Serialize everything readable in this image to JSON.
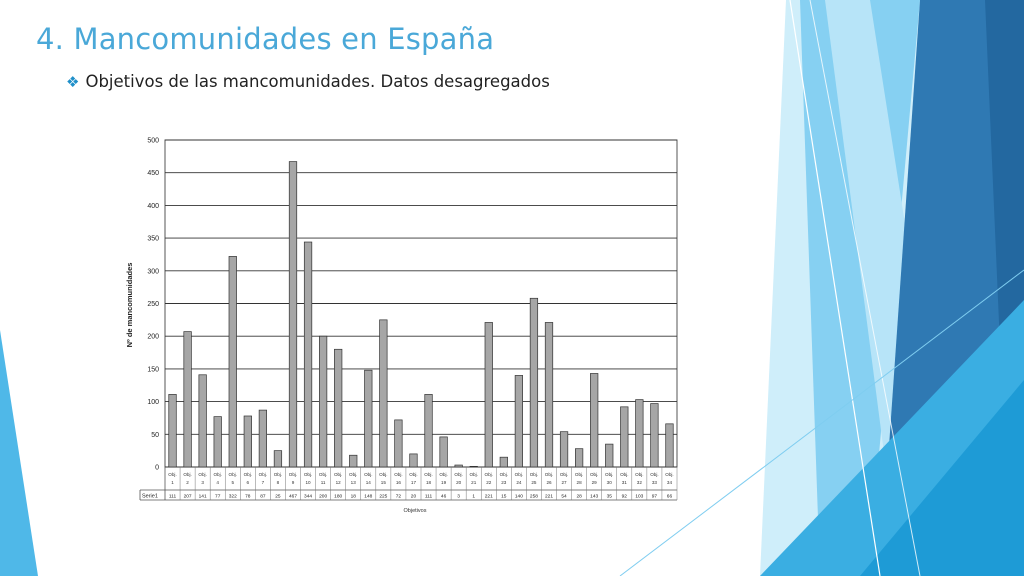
{
  "slide": {
    "title": "4. Mancomunidades en España",
    "subtitle": "Objetivos de las mancomunidades. Datos desagregados",
    "accent_color": "#4aa8d8",
    "bullet_icon": "diamond-bullet-icon"
  },
  "chart_data": {
    "type": "bar",
    "title": "",
    "xlabel": "Objetivos",
    "ylabel": "Nº de mancomunidades",
    "ylim": [
      0,
      500
    ],
    "yticks": [
      0,
      50,
      100,
      150,
      200,
      250,
      300,
      350,
      400,
      450,
      500
    ],
    "grid": true,
    "table_row_label": "Serie1",
    "categories": [
      "Obj. 1",
      "Obj. 2",
      "Obj. 3",
      "Obj. 4",
      "Obj. 5",
      "Obj. 6",
      "Obj. 7",
      "Obj. 8",
      "Obj. 9",
      "Obj. 10",
      "Obj. 11",
      "Obj. 12",
      "Obj. 13",
      "Obj. 14",
      "Obj. 15",
      "Obj. 16",
      "Obj. 17",
      "Obj. 18",
      "Obj. 19",
      "Obj. 20",
      "Obj. 21",
      "Obj. 22",
      "Obj. 23",
      "Obj. 24",
      "Obj. 25",
      "Obj. 26",
      "Obj. 27",
      "Obj. 28",
      "Obj. 29",
      "Obj. 30",
      "Obj. 31",
      "Obj. 32",
      "Obj. 33",
      "Obj. 34"
    ],
    "values": [
      111,
      207,
      141,
      77,
      322,
      78,
      87,
      25,
      467,
      344,
      200,
      180,
      18,
      148,
      225,
      72,
      20,
      111,
      46,
      3,
      1,
      221,
      15,
      140,
      258,
      221,
      54,
      28,
      143,
      35,
      92,
      103,
      97,
      66
    ],
    "bar_color": "#a6a6a6"
  }
}
